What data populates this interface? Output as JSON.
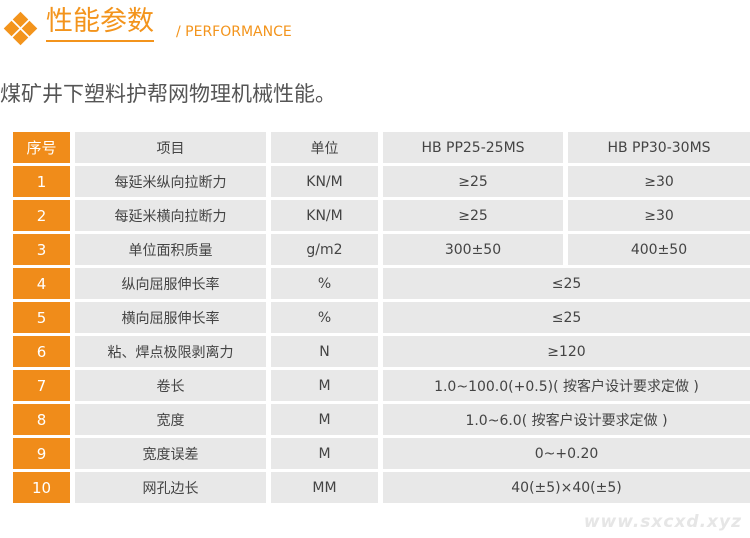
{
  "header": {
    "title": "性能参数",
    "subtitle": "/ PERFORMANCE",
    "icon": "diamond-cluster-icon",
    "accent": "#f08c1a"
  },
  "description": "煤矿井下塑料护帮网物理机械性能。",
  "table": {
    "columns": [
      "序号",
      "项目",
      "单位",
      "HB PP25-25MS",
      "HB PP30-30MS"
    ],
    "rows": [
      {
        "no": "1",
        "item": "每延米纵向拉断力",
        "unit": "KN/M",
        "v1": "≥25",
        "v2": "≥30"
      },
      {
        "no": "2",
        "item": "每延米横向拉断力",
        "unit": "KN/M",
        "v1": "≥25",
        "v2": "≥30"
      },
      {
        "no": "3",
        "item": "单位面积质量",
        "unit": "g/m2",
        "v1": "300±50",
        "v2": "400±50"
      },
      {
        "no": "4",
        "item": "纵向屈服伸长率",
        "unit": "%",
        "v": "≤25"
      },
      {
        "no": "5",
        "item": "横向屈服伸长率",
        "unit": "%",
        "v": "≤25"
      },
      {
        "no": "6",
        "item": "粘、焊点极限剥离力",
        "unit": "N",
        "v": "≥120"
      },
      {
        "no": "7",
        "item": "卷长",
        "unit": "M",
        "v": "1.0~100.0(+0.5)( 按客户设计要求定做 )"
      },
      {
        "no": "8",
        "item": "宽度",
        "unit": "M",
        "v": "1.0~6.0( 按客户设计要求定做 )"
      },
      {
        "no": "9",
        "item": "宽度误差",
        "unit": "M",
        "v": "0~+0.20"
      },
      {
        "no": "10",
        "item": "网孔边长",
        "unit": "MM",
        "v": "40(±5)×40(±5)"
      }
    ]
  },
  "watermark": "www.sxcxd.xyz"
}
